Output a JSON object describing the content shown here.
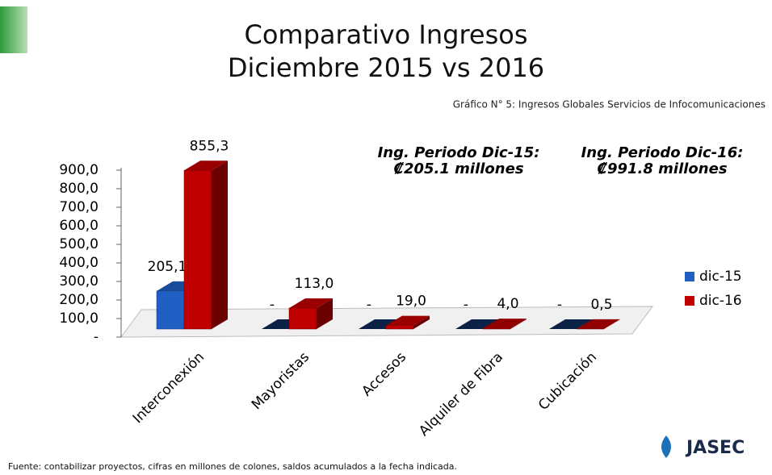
{
  "chart_data": {
    "type": "bar",
    "title": [
      "Comparativo Ingresos",
      "Diciembre 2015 vs 2016"
    ],
    "subtitle": "Gráfico N° 5: Ingresos Globales Servicios de Infocomunicaciones",
    "annotations": [
      [
        "Ing. Periodo Dic-15:",
        "₡205.1 millones"
      ],
      [
        "Ing. Periodo Dic-16:",
        "₡991.8 millones"
      ]
    ],
    "categories": [
      "Interconexión",
      "Mayoristas",
      "Accesos",
      "Alquiler de Fibra",
      "Cubicación"
    ],
    "series": [
      {
        "name": "dic-15",
        "color": "#1f5fc4",
        "values": [
          205.1,
          0,
          0,
          0,
          0
        ],
        "value_labels": [
          "205,1",
          "-",
          "-",
          "-",
          "-"
        ]
      },
      {
        "name": "dic-16",
        "color": "#c00000",
        "values": [
          855.3,
          113.0,
          19.0,
          4.0,
          0.5
        ],
        "value_labels": [
          "855,3",
          "113,0",
          "19,0",
          "4,0",
          "0,5"
        ]
      }
    ],
    "ylim": [
      0,
      900
    ],
    "yticks": [
      {
        "value": 0,
        "label": "-"
      },
      {
        "value": 100,
        "label": "100,0"
      },
      {
        "value": 200,
        "label": "200,0"
      },
      {
        "value": 300,
        "label": "300,0"
      },
      {
        "value": 400,
        "label": "400,0"
      },
      {
        "value": 500,
        "label": "500,0"
      },
      {
        "value": 600,
        "label": "600,0"
      },
      {
        "value": 700,
        "label": "700,0"
      },
      {
        "value": 800,
        "label": "800,0"
      },
      {
        "value": 900,
        "label": "900,0"
      }
    ],
    "legend": "right",
    "footer": "Fuente: contabilizar proyectos, cifras en millones de colones, saldos acumulados a la fecha indicada.",
    "logo": "JASEC"
  }
}
